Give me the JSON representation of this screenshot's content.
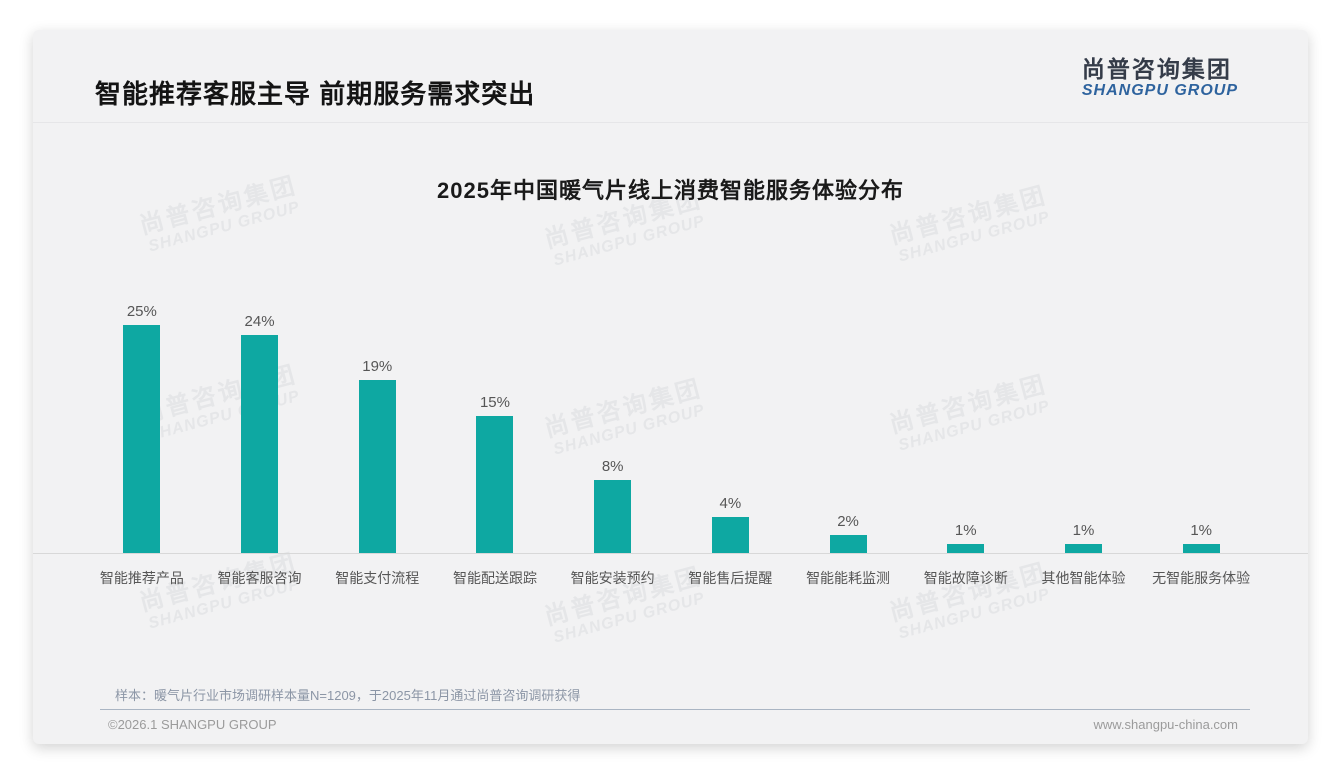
{
  "header": {
    "title": "智能推荐客服主导 前期服务需求突出",
    "logo_cn": "尚普咨询集团",
    "logo_en": "SHANGPU GROUP"
  },
  "watermark": {
    "cn": "尚普咨询集团",
    "en": "SHANGPU GROUP"
  },
  "chart_data": {
    "type": "bar",
    "title": "2025年中国暖气片线上消费智能服务体验分布",
    "categories": [
      "智能推荐产品",
      "智能客服咨询",
      "智能支付流程",
      "智能配送跟踪",
      "智能安装预约",
      "智能售后提醒",
      "智能能耗监测",
      "智能故障诊断",
      "其他智能体验",
      "无智能服务体验"
    ],
    "values": [
      25,
      24,
      19,
      15,
      8,
      4,
      2,
      1,
      1,
      1
    ],
    "data_labels": [
      "25%",
      "24%",
      "19%",
      "15%",
      "8%",
      "4%",
      "2%",
      "1%",
      "1%",
      "1%"
    ],
    "unit": "%",
    "bar_color": "#0EA8A2",
    "label_color": "#565656",
    "ylim": [
      0,
      27
    ],
    "grid": false,
    "legend": "none",
    "xlabel": "",
    "ylabel": ""
  },
  "footer": {
    "footnote": "样本：暖气片行业市场调研样本量N=1209，于2025年11月通过尚普咨询调研获得",
    "copyright": "©2026.1 SHANGPU GROUP",
    "website": "www.shangpu-china.com"
  }
}
